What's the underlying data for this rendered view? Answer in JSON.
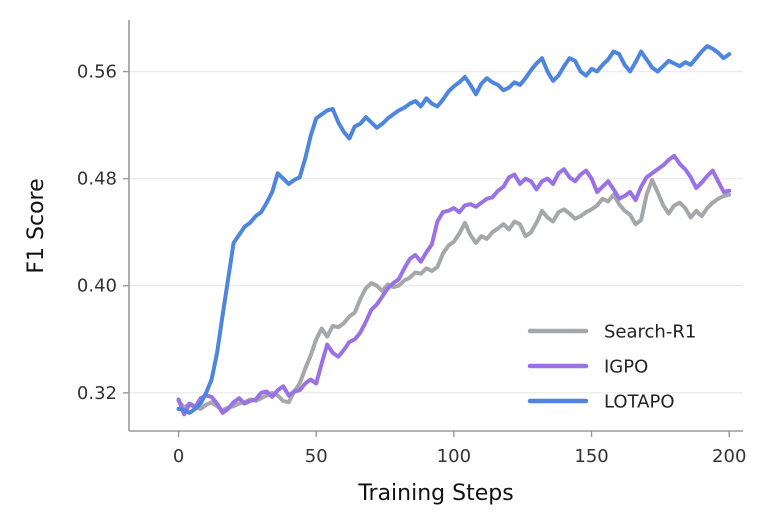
{
  "chart_data": {
    "type": "line",
    "title": "",
    "xlabel": "Training Steps",
    "ylabel": "F1 Score",
    "xlim": [
      -18,
      205
    ],
    "ylim": [
      0.2915,
      0.5985
    ],
    "xticks": [
      0,
      50,
      100,
      150,
      200
    ],
    "xtick_labels": [
      "0",
      "50",
      "100",
      "150",
      "200"
    ],
    "yticks": [
      0.32,
      0.4,
      0.48,
      0.56
    ],
    "ytick_labels": [
      "0.32",
      "0.40",
      "0.48",
      "0.56"
    ],
    "grid": "horizontal",
    "legend_position": "bottom-right",
    "series": [
      {
        "name": "Search-R1",
        "color": "#a5a8aa",
        "x": [
          0,
          2,
          4,
          6,
          8,
          10,
          12,
          14,
          16,
          18,
          20,
          22,
          24,
          26,
          28,
          30,
          32,
          34,
          36,
          38,
          40,
          42,
          44,
          46,
          48,
          50,
          52,
          54,
          56,
          58,
          60,
          62,
          64,
          66,
          68,
          70,
          72,
          74,
          76,
          78,
          80,
          82,
          84,
          86,
          88,
          90,
          92,
          94,
          96,
          98,
          100,
          102,
          104,
          106,
          108,
          110,
          112,
          114,
          116,
          118,
          120,
          122,
          124,
          126,
          128,
          130,
          132,
          134,
          136,
          138,
          140,
          142,
          144,
          146,
          148,
          150,
          152,
          154,
          156,
          158,
          160,
          162,
          164,
          166,
          168,
          170,
          172,
          174,
          176,
          178,
          180,
          182,
          184,
          186,
          188,
          190,
          192,
          194,
          196,
          198,
          200
        ],
        "values": [
          0.314,
          0.309,
          0.312,
          0.31,
          0.308,
          0.311,
          0.313,
          0.31,
          0.307,
          0.309,
          0.31,
          0.312,
          0.313,
          0.315,
          0.314,
          0.316,
          0.318,
          0.32,
          0.318,
          0.314,
          0.313,
          0.321,
          0.327,
          0.338,
          0.348,
          0.36,
          0.368,
          0.362,
          0.37,
          0.369,
          0.372,
          0.377,
          0.38,
          0.39,
          0.398,
          0.402,
          0.4,
          0.396,
          0.401,
          0.399,
          0.4,
          0.404,
          0.406,
          0.41,
          0.409,
          0.413,
          0.411,
          0.414,
          0.424,
          0.43,
          0.433,
          0.439,
          0.447,
          0.438,
          0.432,
          0.437,
          0.435,
          0.44,
          0.443,
          0.446,
          0.442,
          0.448,
          0.446,
          0.437,
          0.44,
          0.447,
          0.456,
          0.451,
          0.448,
          0.455,
          0.457,
          0.454,
          0.45,
          0.452,
          0.455,
          0.457,
          0.46,
          0.465,
          0.463,
          0.468,
          0.461,
          0.456,
          0.453,
          0.446,
          0.449,
          0.468,
          0.479,
          0.47,
          0.46,
          0.454,
          0.46,
          0.462,
          0.458,
          0.451,
          0.456,
          0.452,
          0.458,
          0.462,
          0.465,
          0.467,
          0.468
        ]
      },
      {
        "name": "IGPO",
        "color": "#9b72e6",
        "x": [
          0,
          2,
          4,
          6,
          8,
          10,
          12,
          14,
          16,
          18,
          20,
          22,
          24,
          26,
          28,
          30,
          32,
          34,
          36,
          38,
          40,
          42,
          44,
          46,
          48,
          50,
          52,
          54,
          56,
          58,
          60,
          62,
          64,
          66,
          68,
          70,
          72,
          74,
          76,
          78,
          80,
          82,
          84,
          86,
          88,
          90,
          92,
          94,
          96,
          98,
          100,
          102,
          104,
          106,
          108,
          110,
          112,
          114,
          116,
          118,
          120,
          122,
          124,
          126,
          128,
          130,
          132,
          134,
          136,
          138,
          140,
          142,
          144,
          146,
          148,
          150,
          152,
          154,
          156,
          158,
          160,
          162,
          164,
          166,
          168,
          170,
          172,
          174,
          176,
          178,
          180,
          182,
          184,
          186,
          188,
          190,
          192,
          194,
          196,
          198,
          200
        ],
        "values": [
          0.315,
          0.304,
          0.312,
          0.309,
          0.316,
          0.318,
          0.317,
          0.312,
          0.305,
          0.308,
          0.313,
          0.316,
          0.312,
          0.314,
          0.315,
          0.32,
          0.321,
          0.317,
          0.322,
          0.325,
          0.318,
          0.321,
          0.322,
          0.327,
          0.33,
          0.327,
          0.342,
          0.356,
          0.35,
          0.347,
          0.352,
          0.358,
          0.36,
          0.365,
          0.373,
          0.382,
          0.386,
          0.392,
          0.398,
          0.402,
          0.405,
          0.413,
          0.42,
          0.423,
          0.418,
          0.425,
          0.431,
          0.448,
          0.455,
          0.456,
          0.458,
          0.455,
          0.46,
          0.461,
          0.459,
          0.462,
          0.465,
          0.466,
          0.471,
          0.474,
          0.481,
          0.483,
          0.476,
          0.48,
          0.478,
          0.472,
          0.478,
          0.48,
          0.476,
          0.484,
          0.487,
          0.481,
          0.478,
          0.483,
          0.486,
          0.48,
          0.47,
          0.474,
          0.478,
          0.472,
          0.465,
          0.467,
          0.47,
          0.464,
          0.474,
          0.481,
          0.484,
          0.487,
          0.49,
          0.494,
          0.497,
          0.491,
          0.487,
          0.481,
          0.473,
          0.477,
          0.482,
          0.486,
          0.478,
          0.47,
          0.471
        ]
      },
      {
        "name": "LOTAPO",
        "color": "#4e86dd",
        "x": [
          0,
          2,
          4,
          6,
          8,
          10,
          12,
          14,
          16,
          18,
          20,
          22,
          24,
          26,
          28,
          30,
          32,
          34,
          36,
          38,
          40,
          42,
          44,
          46,
          48,
          50,
          52,
          54,
          56,
          58,
          60,
          62,
          64,
          66,
          68,
          70,
          72,
          74,
          76,
          78,
          80,
          82,
          84,
          86,
          88,
          90,
          92,
          94,
          96,
          98,
          100,
          102,
          104,
          106,
          108,
          110,
          112,
          114,
          116,
          118,
          120,
          122,
          124,
          126,
          128,
          130,
          132,
          134,
          136,
          138,
          140,
          142,
          144,
          146,
          148,
          150,
          152,
          154,
          156,
          158,
          160,
          162,
          164,
          166,
          168,
          170,
          172,
          174,
          176,
          178,
          180,
          182,
          184,
          186,
          188,
          190,
          192,
          194,
          196,
          198,
          200
        ],
        "values": [
          0.308,
          0.307,
          0.305,
          0.308,
          0.312,
          0.32,
          0.33,
          0.35,
          0.378,
          0.405,
          0.432,
          0.438,
          0.444,
          0.447,
          0.452,
          0.455,
          0.462,
          0.47,
          0.484,
          0.48,
          0.476,
          0.479,
          0.481,
          0.495,
          0.512,
          0.525,
          0.528,
          0.531,
          0.532,
          0.522,
          0.515,
          0.51,
          0.519,
          0.521,
          0.526,
          0.522,
          0.518,
          0.521,
          0.525,
          0.528,
          0.531,
          0.533,
          0.536,
          0.538,
          0.534,
          0.54,
          0.536,
          0.534,
          0.539,
          0.545,
          0.549,
          0.552,
          0.556,
          0.55,
          0.543,
          0.551,
          0.555,
          0.552,
          0.55,
          0.546,
          0.548,
          0.552,
          0.55,
          0.555,
          0.561,
          0.566,
          0.57,
          0.56,
          0.553,
          0.557,
          0.564,
          0.57,
          0.568,
          0.56,
          0.557,
          0.562,
          0.56,
          0.565,
          0.569,
          0.575,
          0.573,
          0.565,
          0.56,
          0.567,
          0.575,
          0.569,
          0.563,
          0.56,
          0.564,
          0.568,
          0.566,
          0.564,
          0.567,
          0.565,
          0.57,
          0.575,
          0.579,
          0.577,
          0.574,
          0.57,
          0.573
        ]
      }
    ]
  }
}
